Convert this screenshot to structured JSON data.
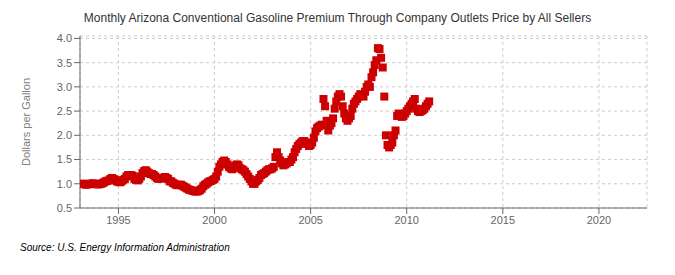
{
  "chart_data": {
    "type": "scatter",
    "title": "Monthly Arizona Conventional Gasoline Premium Through Company Outlets Price by All Sellers",
    "ylabel": "Dollars per Gallon",
    "annotations": [
      "Source: U.S. Energy Information Administration"
    ],
    "xlim": [
      1993.0,
      2022.5
    ],
    "ylim": [
      0.5,
      4.05
    ],
    "xticks": [
      1995,
      2000,
      2005,
      2010,
      2015,
      2020
    ],
    "yticks": [
      0.5,
      {
        "value": 1.0,
        "label": "1.0"
      },
      1.5,
      {
        "value": 2.0,
        "label": "2.0"
      },
      2.5,
      {
        "value": 3.0,
        "label": "3.0"
      },
      3.5,
      {
        "value": 4.0,
        "label": "4.0"
      }
    ],
    "color": "#cc0000",
    "marker": "square",
    "grid": true,
    "x": [
      1993.083,
      1993.167,
      1993.25,
      1993.333,
      1993.417,
      1993.5,
      1993.583,
      1993.667,
      1993.75,
      1993.833,
      1993.917,
      1994.0,
      1994.083,
      1994.167,
      1994.25,
      1994.333,
      1994.417,
      1994.5,
      1994.583,
      1994.667,
      1994.75,
      1994.833,
      1994.917,
      1995.0,
      1995.083,
      1995.167,
      1995.25,
      1995.333,
      1995.417,
      1995.5,
      1995.583,
      1995.667,
      1995.75,
      1995.833,
      1995.917,
      1996.0,
      1996.083,
      1996.167,
      1996.25,
      1996.333,
      1996.417,
      1996.5,
      1996.583,
      1996.667,
      1996.75,
      1996.833,
      1996.917,
      1997.0,
      1997.083,
      1997.167,
      1997.25,
      1997.333,
      1997.417,
      1997.5,
      1997.583,
      1997.667,
      1997.75,
      1997.833,
      1997.917,
      1998.0,
      1998.083,
      1998.167,
      1998.25,
      1998.333,
      1998.417,
      1998.5,
      1998.583,
      1998.667,
      1998.75,
      1998.833,
      1998.917,
      1999.0,
      1999.083,
      1999.167,
      1999.25,
      1999.333,
      1999.417,
      1999.5,
      1999.583,
      1999.667,
      1999.75,
      1999.833,
      1999.917,
      2000.0,
      2000.083,
      2000.167,
      2000.25,
      2000.333,
      2000.417,
      2000.5,
      2000.583,
      2000.667,
      2000.75,
      2000.833,
      2000.917,
      2001.0,
      2001.083,
      2001.167,
      2001.25,
      2001.333,
      2001.417,
      2001.5,
      2001.583,
      2001.667,
      2001.75,
      2001.833,
      2001.917,
      2002.0,
      2002.083,
      2002.167,
      2002.25,
      2002.333,
      2002.417,
      2002.5,
      2002.583,
      2002.667,
      2002.75,
      2002.833,
      2002.917,
      2003.0,
      2003.083,
      2003.167,
      2003.25,
      2003.333,
      2003.417,
      2003.5,
      2003.583,
      2003.667,
      2003.75,
      2003.833,
      2003.917,
      2004.0,
      2004.083,
      2004.167,
      2004.25,
      2004.333,
      2004.417,
      2004.5,
      2004.583,
      2004.667,
      2004.75,
      2004.833,
      2004.917,
      2005.0,
      2005.083,
      2005.167,
      2005.25,
      2005.333,
      2005.417,
      2005.5,
      2005.583,
      2005.667,
      2005.75,
      2005.833,
      2005.917,
      2006.0,
      2006.083,
      2006.167,
      2006.25,
      2006.333,
      2006.417,
      2006.5,
      2006.583,
      2006.667,
      2006.75,
      2006.833,
      2006.917,
      2007.0,
      2007.083,
      2007.167,
      2007.25,
      2007.333,
      2007.417,
      2007.5,
      2007.583,
      2007.667,
      2007.75,
      2007.833,
      2007.917,
      2008.0,
      2008.083,
      2008.167,
      2008.25,
      2008.333,
      2008.417,
      2008.5,
      2008.583,
      2008.667,
      2008.75,
      2008.833,
      2008.917,
      2009.0,
      2009.083,
      2009.167,
      2009.25,
      2009.333,
      2009.417,
      2009.5,
      2009.583,
      2009.667,
      2009.75,
      2009.833,
      2009.917,
      2010.0,
      2010.083,
      2010.167,
      2010.25,
      2010.333,
      2010.417,
      2010.5,
      2010.583,
      2010.667,
      2010.75,
      2010.833,
      2010.917,
      2011.0,
      2011.083,
      2011.167
    ],
    "values": [
      1.0,
      1.0,
      0.99,
      0.98,
      0.99,
      1.0,
      1.0,
      1.01,
      1.0,
      0.99,
      0.99,
      0.99,
      1.0,
      1.01,
      1.03,
      1.05,
      1.06,
      1.07,
      1.1,
      1.12,
      1.1,
      1.08,
      1.05,
      1.04,
      1.03,
      1.05,
      1.08,
      1.1,
      1.15,
      1.18,
      1.17,
      1.18,
      1.16,
      1.1,
      1.08,
      1.07,
      1.1,
      1.15,
      1.22,
      1.26,
      1.28,
      1.25,
      1.22,
      1.2,
      1.2,
      1.18,
      1.15,
      1.12,
      1.1,
      1.12,
      1.11,
      1.12,
      1.14,
      1.12,
      1.1,
      1.05,
      1.05,
      1.02,
      1.0,
      0.98,
      0.97,
      0.98,
      0.98,
      0.96,
      0.94,
      0.92,
      0.9,
      0.88,
      0.87,
      0.86,
      0.85,
      0.84,
      0.84,
      0.85,
      0.87,
      0.9,
      0.95,
      0.98,
      1.0,
      1.03,
      1.05,
      1.06,
      1.08,
      1.1,
      1.15,
      1.25,
      1.35,
      1.4,
      1.45,
      1.48,
      1.45,
      1.4,
      1.35,
      1.32,
      1.3,
      1.35,
      1.38,
      1.4,
      1.38,
      1.32,
      1.3,
      1.28,
      1.25,
      1.2,
      1.15,
      1.1,
      1.05,
      1.0,
      1.0,
      1.05,
      1.08,
      1.12,
      1.18,
      1.2,
      1.22,
      1.25,
      1.28,
      1.3,
      1.3,
      1.32,
      1.35,
      1.55,
      1.65,
      1.55,
      1.48,
      1.42,
      1.38,
      1.4,
      1.42,
      1.45,
      1.45,
      1.5,
      1.55,
      1.65,
      1.72,
      1.78,
      1.82,
      1.85,
      1.88,
      1.88,
      1.85,
      1.82,
      1.78,
      1.8,
      1.85,
      1.95,
      2.08,
      2.15,
      2.18,
      2.2,
      2.22,
      2.75,
      2.6,
      2.3,
      2.1,
      2.2,
      2.25,
      2.35,
      2.55,
      2.7,
      2.8,
      2.85,
      2.8,
      2.6,
      2.45,
      2.35,
      2.3,
      2.35,
      2.4,
      2.55,
      2.65,
      2.7,
      2.75,
      2.8,
      2.85,
      2.82,
      2.8,
      2.9,
      3.0,
      3.05,
      3.0,
      3.2,
      3.3,
      3.45,
      3.55,
      3.8,
      3.78,
      3.6,
      3.4,
      2.8,
      2.0,
      1.8,
      1.75,
      1.8,
      1.85,
      2.0,
      2.1,
      2.4,
      2.45,
      2.4,
      2.38,
      2.4,
      2.45,
      2.5,
      2.55,
      2.6,
      2.65,
      2.7,
      2.75,
      2.55,
      2.5,
      2.48,
      2.5,
      2.52,
      2.55,
      2.6,
      2.65,
      2.7
    ]
  }
}
